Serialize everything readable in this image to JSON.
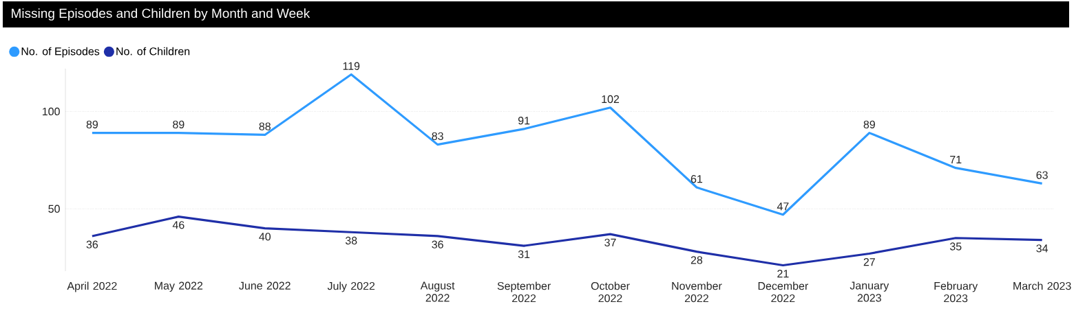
{
  "chart_data": {
    "type": "line",
    "title": "Missing Episodes and Children by Month and Week",
    "categories": [
      "April 2022",
      "May 2022",
      "June 2022",
      "July 2022",
      "August 2022",
      "September 2022",
      "October 2022",
      "November 2022",
      "December 2022",
      "January 2023",
      "February 2023",
      "March 2023"
    ],
    "series": [
      {
        "name": "No. of Episodes",
        "color": "#2e9bff",
        "values": [
          89,
          89,
          88,
          119,
          83,
          91,
          102,
          61,
          47,
          89,
          71,
          63
        ]
      },
      {
        "name": "No. of Children",
        "color": "#1f2fa8",
        "values": [
          36,
          46,
          40,
          38,
          36,
          31,
          37,
          28,
          21,
          27,
          35,
          34
        ]
      }
    ],
    "ylim": [
      18,
      122
    ],
    "yticks": [
      50,
      100
    ],
    "grid": "y",
    "legend": "top left",
    "data_labels": true,
    "marker": "none"
  }
}
